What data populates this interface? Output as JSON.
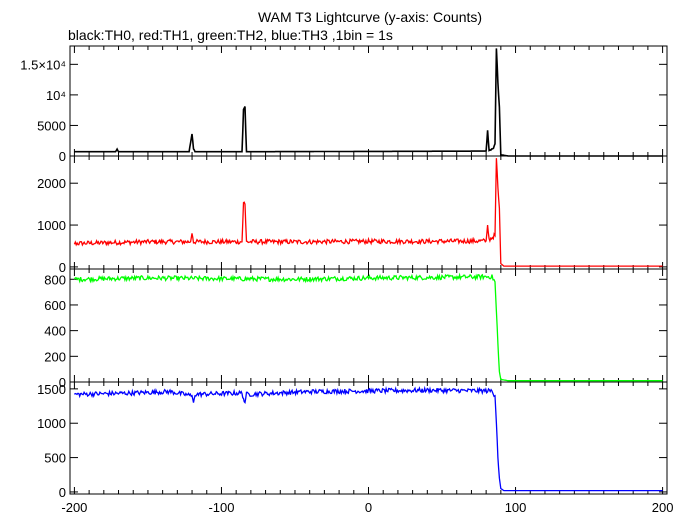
{
  "chart_data": {
    "type": "line",
    "title": "WAM T3 Lightcurve (y-axis: Counts)",
    "subtitle": "black:TH0, red:TH1, green:TH2, blue:TH3 ,1bin = 1s",
    "xlim": [
      -203,
      203
    ],
    "xticks": [
      -200,
      -100,
      0,
      100,
      200
    ],
    "xtick_labels": [
      "-200",
      "-100",
      "0",
      "100",
      "200"
    ],
    "grid": false,
    "panels": [
      {
        "series_name": "TH0",
        "color": "#000000",
        "ylim": [
          0,
          18000
        ],
        "yticks": [
          0,
          5000,
          10000,
          15000
        ],
        "ytick_labels": [
          "0",
          "5000",
          "10⁴",
          "1.5×10⁴"
        ],
        "points": [
          [
            -200,
            700
          ],
          [
            -172,
            700
          ],
          [
            -171,
            1100
          ],
          [
            -170,
            700
          ],
          [
            -122,
            700
          ],
          [
            -121,
            2200
          ],
          [
            -120,
            3600
          ],
          [
            -119,
            1200
          ],
          [
            -118,
            700
          ],
          [
            -86,
            700
          ],
          [
            -85,
            7500
          ],
          [
            -84,
            8100
          ],
          [
            -83,
            700
          ],
          [
            80,
            800
          ],
          [
            81,
            4200
          ],
          [
            82,
            900
          ],
          [
            85,
            1200
          ],
          [
            86,
            2000
          ],
          [
            87,
            17600
          ],
          [
            88,
            12000
          ],
          [
            89,
            8000
          ],
          [
            90,
            200
          ],
          [
            95,
            0
          ],
          [
            200,
            0
          ]
        ]
      },
      {
        "series_name": "TH1",
        "color": "#ff0000",
        "ylim": [
          -50,
          2650
        ],
        "yticks": [
          0,
          1000,
          2000
        ],
        "ytick_labels": [
          "0",
          "1000",
          "2000"
        ],
        "points": [
          [
            -200,
            560
          ],
          [
            -150,
            600
          ],
          [
            -121,
            600
          ],
          [
            -120,
            800
          ],
          [
            -119,
            600
          ],
          [
            -86,
            600
          ],
          [
            -85,
            1550
          ],
          [
            -84,
            1500
          ],
          [
            -83,
            600
          ],
          [
            -40,
            600
          ],
          [
            0,
            610
          ],
          [
            40,
            610
          ],
          [
            80,
            620
          ],
          [
            81,
            1000
          ],
          [
            82,
            650
          ],
          [
            86,
            750
          ],
          [
            87,
            2600
          ],
          [
            88,
            1900
          ],
          [
            89,
            1400
          ],
          [
            90,
            80
          ],
          [
            92,
            20
          ],
          [
            200,
            20
          ]
        ]
      },
      {
        "series_name": "TH2",
        "color": "#00ff00",
        "ylim": [
          0,
          880
        ],
        "yticks": [
          0,
          200,
          400,
          600,
          800
        ],
        "ytick_labels": [
          "0",
          "200",
          "400",
          "600",
          "800"
        ],
        "points": [
          [
            -200,
            800
          ],
          [
            -150,
            810
          ],
          [
            -100,
            805
          ],
          [
            -50,
            800
          ],
          [
            0,
            810
          ],
          [
            50,
            815
          ],
          [
            84,
            820
          ],
          [
            86,
            780
          ],
          [
            87,
            550
          ],
          [
            88,
            300
          ],
          [
            89,
            80
          ],
          [
            90,
            20
          ],
          [
            95,
            10
          ],
          [
            200,
            10
          ]
        ]
      },
      {
        "series_name": "TH3",
        "color": "#0000ff",
        "ylim": [
          -30,
          1600
        ],
        "yticks": [
          0,
          500,
          1000,
          1500
        ],
        "ytick_labels": [
          "0",
          "500",
          "1000",
          "1500"
        ],
        "points": [
          [
            -200,
            1420
          ],
          [
            -160,
            1440
          ],
          [
            -135,
            1460
          ],
          [
            -120,
            1400
          ],
          [
            -119,
            1300
          ],
          [
            -118,
            1420
          ],
          [
            -86,
            1440
          ],
          [
            -85,
            1360
          ],
          [
            -84,
            1300
          ],
          [
            -83,
            1420
          ],
          [
            -40,
            1460
          ],
          [
            0,
            1470
          ],
          [
            40,
            1480
          ],
          [
            84,
            1470
          ],
          [
            86,
            1400
          ],
          [
            87,
            1000
          ],
          [
            88,
            500
          ],
          [
            89,
            200
          ],
          [
            90,
            50
          ],
          [
            92,
            20
          ],
          [
            200,
            20
          ]
        ]
      }
    ]
  }
}
